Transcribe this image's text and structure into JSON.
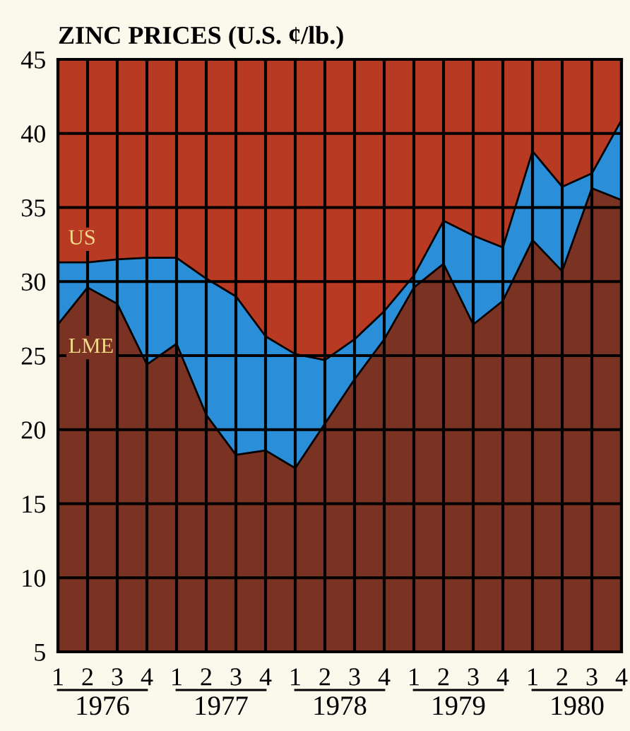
{
  "chart_data": {
    "type": "area",
    "title": "ZINC PRICES (U.S. ¢/lb.)",
    "categories": [
      "1",
      "2",
      "3",
      "4",
      "1",
      "2",
      "3",
      "4",
      "1",
      "2",
      "3",
      "4",
      "1",
      "2",
      "3",
      "4",
      "1",
      "2",
      "3",
      "4"
    ],
    "series": [
      {
        "name": "US",
        "color": "#2a8fd8",
        "values": [
          31.3,
          31.3,
          31.5,
          31.6,
          31.6,
          30.2,
          29.0,
          26.3,
          25.1,
          24.7,
          26.1,
          28.0,
          30.4,
          34.1,
          33.1,
          32.3,
          38.8,
          36.4,
          37.3,
          40.9
        ]
      },
      {
        "name": "LME",
        "color": "#7a3322",
        "values": [
          27.1,
          29.6,
          28.5,
          24.4,
          25.8,
          21.0,
          18.3,
          18.6,
          17.4,
          20.4,
          23.4,
          26.1,
          29.6,
          31.2,
          27.1,
          28.7,
          32.8,
          30.7,
          36.3,
          35.5
        ]
      }
    ],
    "bands": [
      {
        "axis": "y",
        "from": 5,
        "to": 45,
        "color": "#b83a22"
      }
    ],
    "ylim": [
      5,
      45
    ],
    "yticks": [
      5,
      10,
      15,
      20,
      25,
      30,
      35,
      40,
      45
    ],
    "grid": true,
    "legend": false,
    "annotations": [
      "1976",
      "1977",
      "1978",
      "1979",
      "1980"
    ]
  }
}
